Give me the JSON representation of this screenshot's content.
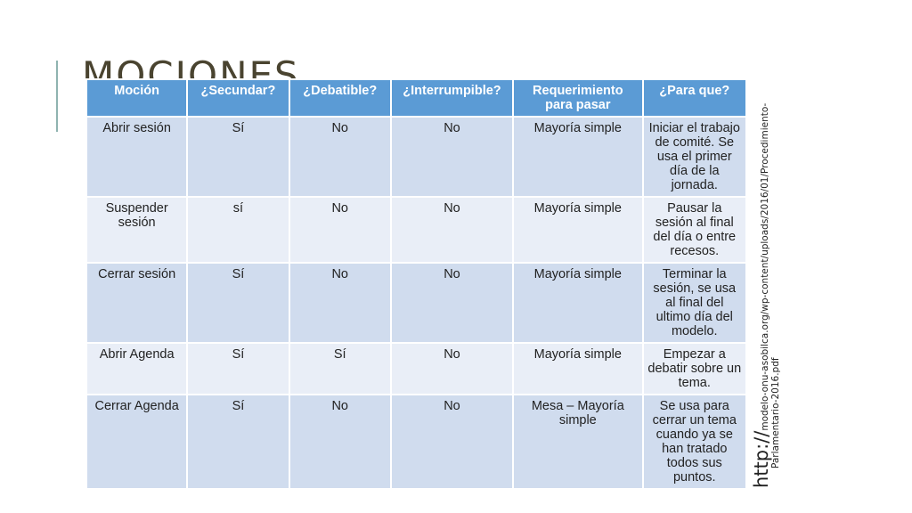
{
  "slide": {
    "title": "MOCIONES"
  },
  "table": {
    "headers": [
      "Moción",
      "¿Secundar?",
      "¿Debatible?",
      "¿Interrumpible?",
      "Requerimiento para pasar",
      "¿Para que?"
    ],
    "rows": [
      [
        "Abrir sesión",
        "Sí",
        "No",
        "No",
        "Mayoría simple",
        "Iniciar el trabajo de comité. Se usa el primer día de la jornada."
      ],
      [
        "Suspender sesión",
        "sí",
        "No",
        "No",
        "Mayoría simple",
        "Pausar la sesión al final del día o entre recesos."
      ],
      [
        "Cerrar sesión",
        "Sí",
        "No",
        "No",
        "Mayoría simple",
        "Terminar la sesión, se usa al final del ultimo día del modelo."
      ],
      [
        "Abrir Agenda",
        "Sí",
        "Sí",
        "No",
        "Mayoría simple",
        "Empezar a debatir sobre un tema."
      ],
      [
        "Cerrar Agenda",
        "Sí",
        "No",
        "No",
        "Mesa – Mayoría simple",
        "Se usa para cerrar un tema cuando ya se han tratado todos sus puntos."
      ]
    ]
  },
  "source": {
    "protocol": "http://",
    "path_line1": "modelo-onu-asobilca.org/wp-content/uploads/2016/01/Procedimiento-",
    "path_line2": "Parlamentario-2016.pdf"
  },
  "colors": {
    "header_bg": "#5b9bd5",
    "row_dark": "#d0dcee",
    "row_light": "#e9eef7",
    "title_text": "#4a4430",
    "accent_line": "#8fb3b0"
  }
}
